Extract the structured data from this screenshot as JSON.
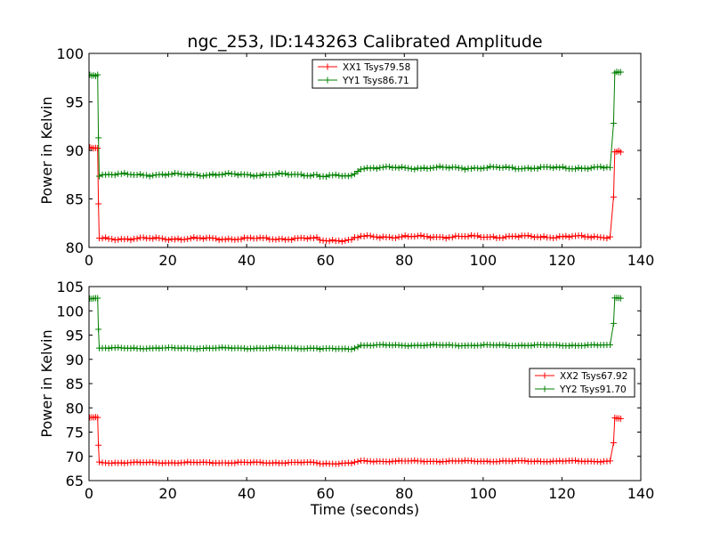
{
  "chart_data": [
    {
      "type": "line",
      "title": "ngc_253, ID:143263 Calibrated Amplitude",
      "xlabel": "",
      "ylabel": "Power in Kelvin",
      "xlim": [
        0,
        140
      ],
      "ylim": [
        80,
        100
      ],
      "xticks": [
        0,
        20,
        40,
        60,
        80,
        100,
        120,
        140
      ],
      "yticks": [
        80,
        85,
        90,
        95,
        100
      ],
      "grid": false,
      "legend_position": "top-center",
      "series": [
        {
          "name": "XX1 Tsys79.58",
          "color": "#ff0000",
          "marker": "+",
          "start": 90.2,
          "edge_drop": 84.5,
          "base": 80.9,
          "step": 0.2,
          "end_rise": 85.2,
          "end": 89.8
        },
        {
          "name": "YY1 Tsys86.71",
          "color": "#008000",
          "marker": "+",
          "start": 97.8,
          "edge_drop": 91.3,
          "base": 87.5,
          "step": 0.7,
          "end_rise": 92.8,
          "end": 98.1
        }
      ]
    },
    {
      "type": "line",
      "title": "",
      "xlabel": "Time (seconds)",
      "ylabel": "Power in Kelvin",
      "xlim": [
        0,
        140
      ],
      "ylim": [
        65,
        105
      ],
      "xticks": [
        0,
        20,
        40,
        60,
        80,
        100,
        120,
        140
      ],
      "yticks": [
        65,
        70,
        75,
        80,
        85,
        90,
        95,
        100,
        105
      ],
      "grid": false,
      "legend_position": "center-right",
      "series": [
        {
          "name": "XX2 Tsys67.92",
          "color": "#ff0000",
          "marker": "+",
          "start": 78.0,
          "edge_drop": 72.3,
          "base": 68.7,
          "step": 0.3,
          "end_rise": 72.8,
          "end": 77.8
        },
        {
          "name": "YY2 Tsys91.70",
          "color": "#008000",
          "marker": "+",
          "start": 102.6,
          "edge_drop": 96.2,
          "base": 92.3,
          "step": 0.6,
          "end_rise": 97.4,
          "end": 102.7
        }
      ]
    }
  ]
}
